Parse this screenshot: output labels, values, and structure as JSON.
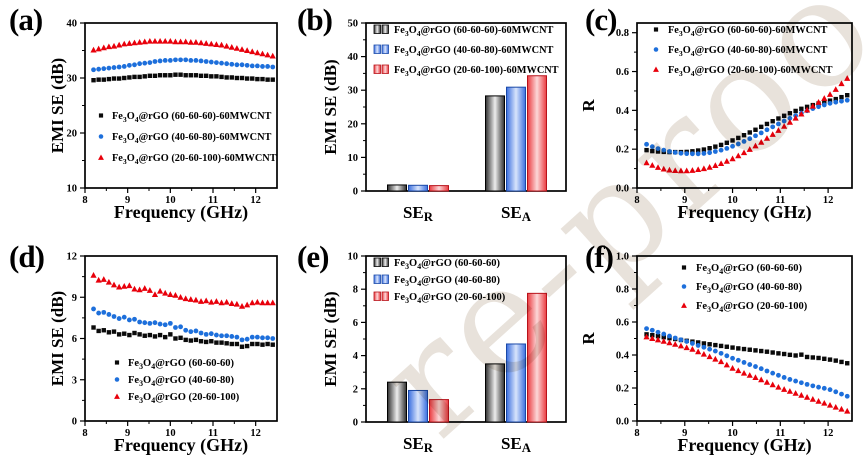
{
  "figure": {
    "background": "#ffffff"
  },
  "watermark": {
    "text": "re-proofs",
    "color": "#d9cfc3"
  },
  "chart_data": {
    "frequency_ghz": [
      8.2,
      8.32,
      8.44,
      8.56,
      8.68,
      8.8,
      8.92,
      9.04,
      9.16,
      9.28,
      9.4,
      9.52,
      9.64,
      9.76,
      9.88,
      10.0,
      10.12,
      10.24,
      10.36,
      10.48,
      10.6,
      10.72,
      10.84,
      10.96,
      11.08,
      11.2,
      11.32,
      11.44,
      11.56,
      11.68,
      11.8,
      11.92,
      12.04,
      12.16,
      12.28,
      12.4
    ],
    "panels": {
      "a": {
        "letter": "(a)",
        "type": "scatter",
        "xlabel": "Frequency (GHz)",
        "ylabel": "EMI SE (dB)",
        "xlim": [
          8,
          12.5
        ],
        "ylim": [
          10,
          40
        ],
        "xticks": [
          8,
          9,
          10,
          11,
          12
        ],
        "yticks": [
          10,
          20,
          30,
          40
        ],
        "ydecimals": 0,
        "legend_position": "inside-lower-left",
        "series": [
          {
            "label": "Fe3O4@rGO (60-60-60)-60MWCNT",
            "marker": "square",
            "color": "#0a0a0a",
            "y": [
              29.6,
              29.7,
              29.7,
              29.8,
              29.9,
              29.9,
              30.0,
              30.1,
              30.2,
              30.2,
              30.3,
              30.4,
              30.4,
              30.5,
              30.5,
              30.5,
              30.6,
              30.6,
              30.5,
              30.5,
              30.5,
              30.4,
              30.4,
              30.3,
              30.3,
              30.2,
              30.1,
              30.1,
              30.0,
              30.0,
              29.9,
              29.9,
              29.8,
              29.8,
              29.7,
              29.7
            ]
          },
          {
            "label": "Fe3O4@rGO (40-60-80)-60MWCNT",
            "marker": "circle",
            "color": "#1d6fdb",
            "y": [
              31.5,
              31.6,
              31.7,
              31.8,
              31.9,
              32.0,
              32.1,
              32.3,
              32.4,
              32.6,
              32.7,
              32.8,
              33.0,
              33.1,
              33.2,
              33.2,
              33.3,
              33.3,
              33.3,
              33.2,
              33.2,
              33.1,
              33.0,
              32.9,
              32.8,
              32.7,
              32.6,
              32.5,
              32.4,
              32.4,
              32.3,
              32.2,
              32.2,
              32.1,
              32.1,
              32.0
            ]
          },
          {
            "label": "Fe3O4@rGO (20-60-100)-60MWCNT",
            "marker": "triangle",
            "color": "#e8000b",
            "y": [
              35.1,
              35.3,
              35.5,
              35.7,
              35.8,
              36.0,
              36.2,
              36.3,
              36.4,
              36.5,
              36.6,
              36.7,
              36.7,
              36.7,
              36.7,
              36.7,
              36.6,
              36.6,
              36.6,
              36.5,
              36.5,
              36.4,
              36.3,
              36.2,
              36.1,
              36.0,
              35.8,
              35.6,
              35.4,
              35.2,
              35.0,
              34.8,
              34.6,
              34.4,
              34.2,
              34.0
            ]
          }
        ]
      },
      "b": {
        "letter": "(b)",
        "type": "bar",
        "ylabel": "EMI SE (dB)",
        "ylim": [
          0,
          50
        ],
        "yticks": [
          0,
          10,
          20,
          30,
          40,
          50
        ],
        "ydecimals": 0,
        "categories": [
          "SE_R",
          "SE_A"
        ],
        "legend_position": "inside-top-left",
        "series": [
          {
            "label": "Fe3O4@rGO (60-60-60)-60MWCNT",
            "edge": "#2f2f2f",
            "center": "#ededed",
            "stroke": "#000000",
            "values": [
              1.8,
              28.3
            ]
          },
          {
            "label": "Fe3O4@rGO (40-60-80)-60MWCNT",
            "edge": "#3b6fe0",
            "center": "#d8e4fb",
            "stroke": "#1a49a8",
            "values": [
              1.7,
              30.9
            ]
          },
          {
            "label": "Fe3O4@rGO (20-60-100)-60MWCNT",
            "edge": "#ea3b40",
            "center": "#fcd7d8",
            "stroke": "#b8121a",
            "values": [
              1.6,
              34.3
            ]
          }
        ]
      },
      "c": {
        "letter": "(c)",
        "type": "scatter",
        "xlabel": "Frequency (GHz)",
        "ylabel": "R",
        "xlim": [
          8,
          12.5
        ],
        "ylim": [
          0,
          0.85
        ],
        "xticks": [
          8,
          9,
          10,
          11,
          12
        ],
        "yticks": [
          0.0,
          0.2,
          0.4,
          0.6,
          0.8
        ],
        "ydecimals": 1,
        "legend_position": "inside-top-left",
        "series": [
          {
            "label": "Fe3O4@rGO (60-60-60)-60MWCNT",
            "marker": "square",
            "color": "#0a0a0a",
            "y": [
              0.195,
              0.19,
              0.188,
              0.186,
              0.185,
              0.185,
              0.185,
              0.186,
              0.189,
              0.193,
              0.198,
              0.205,
              0.213,
              0.222,
              0.233,
              0.245,
              0.258,
              0.272,
              0.286,
              0.3,
              0.315,
              0.33,
              0.344,
              0.358,
              0.372,
              0.385,
              0.397,
              0.408,
              0.418,
              0.427,
              0.435,
              0.443,
              0.45,
              0.458,
              0.468,
              0.478
            ]
          },
          {
            "label": "Fe3O4@rGO (40-60-80)-60MWCNT",
            "marker": "circle",
            "color": "#1d6fdb",
            "y": [
              0.225,
              0.213,
              0.203,
              0.195,
              0.188,
              0.183,
              0.179,
              0.177,
              0.176,
              0.176,
              0.178,
              0.182,
              0.188,
              0.195,
              0.204,
              0.215,
              0.227,
              0.24,
              0.254,
              0.269,
              0.284,
              0.3,
              0.315,
              0.33,
              0.345,
              0.359,
              0.373,
              0.386,
              0.398,
              0.409,
              0.419,
              0.428,
              0.436,
              0.442,
              0.447,
              0.452
            ]
          },
          {
            "label": "Fe3O4@rGO (20-60-100)-60MWCNT",
            "marker": "triangle",
            "color": "#e8000b",
            "y": [
              0.13,
              0.117,
              0.106,
              0.098,
              0.093,
              0.09,
              0.089,
              0.089,
              0.091,
              0.095,
              0.1,
              0.107,
              0.116,
              0.126,
              0.138,
              0.151,
              0.166,
              0.182,
              0.199,
              0.217,
              0.236,
              0.256,
              0.276,
              0.297,
              0.318,
              0.339,
              0.36,
              0.381,
              0.402,
              0.422,
              0.442,
              0.462,
              0.482,
              0.508,
              0.538,
              0.565
            ]
          }
        ]
      },
      "d": {
        "letter": "(d)",
        "type": "scatter",
        "xlabel": "Frequency (GHz)",
        "ylabel": "EMI SE (dB)",
        "xlim": [
          8,
          12.5
        ],
        "ylim": [
          0,
          12
        ],
        "xticks": [
          8,
          9,
          10,
          11,
          12
        ],
        "yticks": [
          0,
          3,
          6,
          9,
          12
        ],
        "ydecimals": 0,
        "legend_position": "inside-lower-middle",
        "series": [
          {
            "label": "Fe3O4@rGO (60-60-60)",
            "marker": "square",
            "color": "#0a0a0a",
            "y": [
              6.8,
              6.55,
              6.6,
              6.45,
              6.5,
              6.3,
              6.35,
              6.25,
              6.4,
              6.3,
              6.2,
              6.25,
              6.15,
              6.25,
              6.1,
              6.3,
              6.0,
              6.05,
              5.9,
              5.85,
              5.9,
              5.8,
              5.75,
              5.8,
              5.7,
              5.7,
              5.65,
              5.6,
              5.6,
              5.4,
              5.45,
              5.6,
              5.6,
              5.55,
              5.6,
              5.55
            ]
          },
          {
            "label": "Fe3O4@rGO (40-60-80)",
            "marker": "circle",
            "color": "#1d6fdb",
            "y": [
              8.15,
              7.85,
              7.9,
              7.75,
              7.6,
              7.45,
              7.55,
              7.35,
              7.4,
              7.2,
              7.15,
              7.1,
              7.15,
              7.05,
              7.0,
              7.1,
              6.8,
              6.85,
              6.6,
              6.5,
              6.55,
              6.4,
              6.3,
              6.35,
              6.25,
              6.2,
              6.2,
              6.15,
              6.1,
              5.9,
              5.95,
              6.1,
              6.1,
              6.05,
              6.05,
              6.0
            ]
          },
          {
            "label": "Fe3O4@rGO (20-60-100)",
            "marker": "triangle",
            "color": "#e8000b",
            "y": [
              10.6,
              10.25,
              10.3,
              10.1,
              9.9,
              9.75,
              9.8,
              9.85,
              9.6,
              9.55,
              9.65,
              9.5,
              9.2,
              9.45,
              9.3,
              9.2,
              9.15,
              9.0,
              8.9,
              8.85,
              8.8,
              8.7,
              8.75,
              8.65,
              8.7,
              8.6,
              8.65,
              8.55,
              8.5,
              8.35,
              8.45,
              8.6,
              8.65,
              8.6,
              8.6,
              8.6
            ]
          }
        ]
      },
      "e": {
        "letter": "(e)",
        "type": "bar",
        "ylabel": "EMI SE (dB)",
        "ylim": [
          0,
          10
        ],
        "yticks": [
          0,
          2,
          4,
          6,
          8,
          10
        ],
        "ydecimals": 0,
        "categories": [
          "SE_R",
          "SE_A"
        ],
        "legend_position": "inside-top-left",
        "series": [
          {
            "label": "Fe3O4@rGO (60-60-60)",
            "edge": "#2f2f2f",
            "center": "#ededed",
            "stroke": "#000000",
            "values": [
              2.4,
              3.5
            ]
          },
          {
            "label": "Fe3O4@rGO (40-60-80)",
            "edge": "#3b6fe0",
            "center": "#d8e4fb",
            "stroke": "#1a49a8",
            "values": [
              1.9,
              4.7
            ]
          },
          {
            "label": "Fe3O4@rGO (20-60-100)",
            "edge": "#ea3b40",
            "center": "#fcd7d8",
            "stroke": "#b8121a",
            "values": [
              1.35,
              7.75
            ]
          }
        ]
      },
      "f": {
        "letter": "(f)",
        "type": "scatter",
        "xlabel": "Frequency (GHz)",
        "ylabel": "R",
        "xlim": [
          8,
          12.5
        ],
        "ylim": [
          0,
          1.0
        ],
        "xticks": [
          8,
          9,
          10,
          11,
          12
        ],
        "yticks": [
          0.0,
          0.2,
          0.4,
          0.6,
          0.8,
          1.0
        ],
        "ydecimals": 1,
        "legend_position": "inside-top-middle",
        "series": [
          {
            "label": "Fe3O4@rGO (60-60-60)",
            "marker": "square",
            "color": "#0a0a0a",
            "y": [
              0.525,
              0.52,
              0.514,
              0.508,
              0.502,
              0.497,
              0.491,
              0.486,
              0.481,
              0.476,
              0.47,
              0.465,
              0.46,
              0.455,
              0.45,
              0.445,
              0.44,
              0.436,
              0.432,
              0.428,
              0.424,
              0.42,
              0.415,
              0.41,
              0.406,
              0.401,
              0.397,
              0.402,
              0.388,
              0.385,
              0.382,
              0.377,
              0.372,
              0.366,
              0.358,
              0.35
            ]
          },
          {
            "label": "Fe3O4@rGO (40-60-80)",
            "marker": "circle",
            "color": "#1d6fdb",
            "y": [
              0.56,
              0.55,
              0.538,
              0.527,
              0.515,
              0.503,
              0.492,
              0.482,
              0.47,
              0.458,
              0.447,
              0.435,
              0.424,
              0.41,
              0.395,
              0.38,
              0.368,
              0.355,
              0.342,
              0.33,
              0.317,
              0.303,
              0.29,
              0.277,
              0.264,
              0.252,
              0.242,
              0.232,
              0.222,
              0.213,
              0.205,
              0.198,
              0.19,
              0.177,
              0.163,
              0.15
            ]
          },
          {
            "label": "Fe3O4@rGO (20-60-100)",
            "marker": "triangle",
            "color": "#e8000b",
            "y": [
              0.51,
              0.5,
              0.492,
              0.483,
              0.474,
              0.465,
              0.455,
              0.445,
              0.435,
              0.42,
              0.405,
              0.39,
              0.375,
              0.36,
              0.34,
              0.32,
              0.305,
              0.29,
              0.277,
              0.264,
              0.25,
              0.235,
              0.22,
              0.205,
              0.192,
              0.18,
              0.168,
              0.156,
              0.144,
              0.132,
              0.12,
              0.108,
              0.096,
              0.084,
              0.072,
              0.06
            ]
          }
        ]
      }
    }
  }
}
